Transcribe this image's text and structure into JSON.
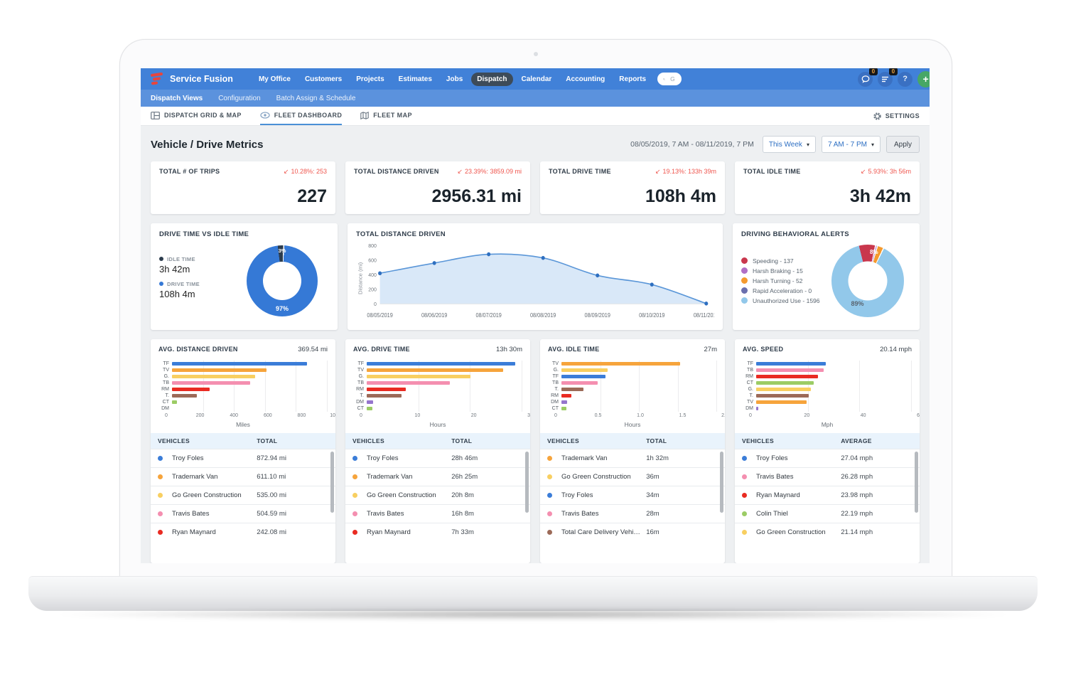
{
  "icons": {
    "decrease": "↙",
    "caret": "▾",
    "help": "?",
    "plus": "+"
  },
  "nav": {
    "brand": "Service Fusion",
    "items": [
      "My Office",
      "Customers",
      "Projects",
      "Estimates",
      "Jobs",
      "Dispatch",
      "Calendar",
      "Accounting",
      "Reports"
    ],
    "active_item": "Dispatch",
    "search_placeholder": "Global Search",
    "badges": {
      "messages": "0",
      "tasks": "0"
    }
  },
  "subnav": {
    "items": [
      "Dispatch Views",
      "Configuration",
      "Batch Assign & Schedule"
    ],
    "active": "Dispatch Views"
  },
  "tabs": {
    "items": [
      "DISPATCH GRID & MAP",
      "FLEET DASHBOARD",
      "FLEET MAP"
    ],
    "active": "FLEET DASHBOARD",
    "settings_label": "SETTINGS"
  },
  "page": {
    "title": "Vehicle / Drive Metrics",
    "date_range": "08/05/2019, 7 AM - 08/11/2019, 7 PM",
    "range_select": "This Week",
    "time_select": "7 AM - 7 PM",
    "apply_label": "Apply"
  },
  "kpis": [
    {
      "label": "TOTAL # OF TRIPS",
      "delta": "10.28%: 253",
      "value": "227"
    },
    {
      "label": "TOTAL DISTANCE DRIVEN",
      "delta": "23.39%: 3859.09 mi",
      "value": "2956.31 mi"
    },
    {
      "label": "TOTAL DRIVE TIME",
      "delta": "19.13%: 133h 39m",
      "value": "108h 4m"
    },
    {
      "label": "TOTAL IDLE TIME",
      "delta": "5.93%: 3h 56m",
      "value": "3h 42m"
    }
  ],
  "chart_data": [
    {
      "type": "pie",
      "title": "DRIVE TIME VS IDLE TIME",
      "legend_position": "left",
      "slices": [
        {
          "label": "IDLE TIME",
          "value": "3h 42m",
          "pct": 3,
          "color": "#2c3c4d"
        },
        {
          "label": "DRIVE TIME",
          "value": "108h 4m",
          "pct": 97,
          "color": "#3579d6"
        }
      ],
      "center_labels": {
        "major": "97%",
        "minor": "3%"
      }
    },
    {
      "type": "area",
      "title": "TOTAL DISTANCE DRIVEN",
      "ylabel": "Distance (mi)",
      "ymax": 800,
      "yticks": [
        0,
        200,
        400,
        600,
        800
      ],
      "x": [
        "08/05/2019",
        "08/06/2019",
        "08/07/2019",
        "08/08/2019",
        "08/09/2019",
        "08/10/2019",
        "08/11/2019"
      ],
      "values": [
        420,
        560,
        680,
        630,
        390,
        265,
        5
      ]
    },
    {
      "type": "pie",
      "title": "DRIVING BEHAVIORAL ALERTS",
      "legend_position": "left",
      "slices": [
        {
          "label": "Speeding - 137",
          "value": 137,
          "color": "#c9374d"
        },
        {
          "label": "Harsh Braking - 15",
          "value": 15,
          "color": "#b06fc6"
        },
        {
          "label": "Harsh Turning - 52",
          "value": 52,
          "color": "#f49a2e"
        },
        {
          "label": "Rapid Acceleration - 0",
          "value": 0,
          "color": "#6a6fae"
        },
        {
          "label": "Unauthorized Use - 1596",
          "value": 1596,
          "color": "#92c8ea"
        }
      ],
      "center_labels": {
        "major": "89%",
        "minor": "8%"
      }
    },
    {
      "type": "bar",
      "title": "AVG. DISTANCE DRIVEN",
      "value": "369.54 mi",
      "xlabel": "Miles",
      "xmax": 1000,
      "xticks": [
        "0",
        "200",
        "400",
        "600",
        "800",
        "1000"
      ],
      "bars": [
        {
          "label": "TF",
          "color": "#3b7dd8",
          "value": 873
        },
        {
          "label": "TV",
          "color": "#f6a43c",
          "value": 611
        },
        {
          "label": "G.",
          "color": "#f8cf61",
          "value": 535
        },
        {
          "label": "TB",
          "color": "#f48fb0",
          "value": 505
        },
        {
          "label": "RM",
          "color": "#e92b22",
          "value": 242
        },
        {
          "label": "T.",
          "color": "#9c6a58",
          "value": 160
        },
        {
          "label": "CT",
          "color": "#9ccc65",
          "value": 30
        },
        {
          "label": "DM",
          "color": "#9575cd",
          "value": 0
        }
      ]
    },
    {
      "type": "bar",
      "title": "AVG. DRIVE TIME",
      "value": "13h 30m",
      "xlabel": "Hours",
      "xmax": 30,
      "xticks": [
        "0",
        "10",
        "20",
        "30"
      ],
      "bars": [
        {
          "label": "TF",
          "color": "#3b7dd8",
          "value": 28.8
        },
        {
          "label": "TV",
          "color": "#f6a43c",
          "value": 26.4
        },
        {
          "label": "G.",
          "color": "#f8cf61",
          "value": 20.1
        },
        {
          "label": "TB",
          "color": "#f48fb0",
          "value": 16.1
        },
        {
          "label": "RM",
          "color": "#e92b22",
          "value": 7.6
        },
        {
          "label": "T.",
          "color": "#9c6a58",
          "value": 6.8
        },
        {
          "label": "DM",
          "color": "#9575cd",
          "value": 1.2
        },
        {
          "label": "CT",
          "color": "#9ccc65",
          "value": 1.1
        }
      ]
    },
    {
      "type": "bar",
      "title": "AVG. IDLE TIME",
      "value": "27m",
      "xlabel": "Hours",
      "xmax": 2,
      "xticks": [
        "0",
        "0.5",
        "1.0",
        "1.5",
        "2.0"
      ],
      "bars": [
        {
          "label": "TV",
          "color": "#f6a43c",
          "value": 1.53
        },
        {
          "label": "G.",
          "color": "#f8cf61",
          "value": 0.6
        },
        {
          "label": "TF",
          "color": "#3b7dd8",
          "value": 0.57
        },
        {
          "label": "TB",
          "color": "#f48fb0",
          "value": 0.47
        },
        {
          "label": "T.",
          "color": "#9c6a58",
          "value": 0.28
        },
        {
          "label": "RM",
          "color": "#e92b22",
          "value": 0.13
        },
        {
          "label": "DM",
          "color": "#9575cd",
          "value": 0.07
        },
        {
          "label": "CT",
          "color": "#9ccc65",
          "value": 0.06
        }
      ]
    },
    {
      "type": "bar",
      "title": "AVG. SPEED",
      "value": "20.14 mph",
      "xlabel": "Mph",
      "xmax": 60,
      "xticks": [
        "0",
        "20",
        "40",
        "60"
      ],
      "bars": [
        {
          "label": "TF",
          "color": "#3b7dd8",
          "value": 27.0
        },
        {
          "label": "TB",
          "color": "#f48fb0",
          "value": 26.3
        },
        {
          "label": "RM",
          "color": "#e92b22",
          "value": 24.0
        },
        {
          "label": "CT",
          "color": "#9ccc65",
          "value": 22.2
        },
        {
          "label": "G.",
          "color": "#f8cf61",
          "value": 21.1
        },
        {
          "label": "T.",
          "color": "#9c6a58",
          "value": 20.3
        },
        {
          "label": "TV",
          "color": "#f6a43c",
          "value": 19.5
        },
        {
          "label": "DM",
          "color": "#9575cd",
          "value": 0.7
        }
      ]
    }
  ],
  "vehicle_tables": [
    {
      "headers": [
        "VEHICLES",
        "TOTAL"
      ],
      "rows": [
        {
          "color": "#3b7dd8",
          "name": "Troy Foles",
          "value": "872.94 mi"
        },
        {
          "color": "#f6a43c",
          "name": "Trademark Van",
          "value": "611.10 mi"
        },
        {
          "color": "#f8cf61",
          "name": "Go Green Construction",
          "value": "535.00 mi"
        },
        {
          "color": "#f48fb0",
          "name": "Travis Bates",
          "value": "504.59 mi"
        },
        {
          "color": "#e92b22",
          "name": "Ryan Maynard",
          "value": "242.08 mi"
        }
      ]
    },
    {
      "headers": [
        "VEHICLES",
        "TOTAL"
      ],
      "rows": [
        {
          "color": "#3b7dd8",
          "name": "Troy Foles",
          "value": "28h 46m"
        },
        {
          "color": "#f6a43c",
          "name": "Trademark Van",
          "value": "26h 25m"
        },
        {
          "color": "#f8cf61",
          "name": "Go Green Construction",
          "value": "20h 8m"
        },
        {
          "color": "#f48fb0",
          "name": "Travis Bates",
          "value": "16h 8m"
        },
        {
          "color": "#e92b22",
          "name": "Ryan Maynard",
          "value": "7h 33m"
        }
      ]
    },
    {
      "headers": [
        "VEHICLES",
        "TOTAL"
      ],
      "rows": [
        {
          "color": "#f6a43c",
          "name": "Trademark Van",
          "value": "1h 32m"
        },
        {
          "color": "#f8cf61",
          "name": "Go Green Construction",
          "value": "36m"
        },
        {
          "color": "#3b7dd8",
          "name": "Troy Foles",
          "value": "34m"
        },
        {
          "color": "#f48fb0",
          "name": "Travis Bates",
          "value": "28m"
        },
        {
          "color": "#9c6a58",
          "name": "Total Care Delivery Vehi…",
          "value": "16m"
        }
      ]
    },
    {
      "headers": [
        "VEHICLES",
        "AVERAGE"
      ],
      "rows": [
        {
          "color": "#3b7dd8",
          "name": "Troy Foles",
          "value": "27.04 mph"
        },
        {
          "color": "#f48fb0",
          "name": "Travis Bates",
          "value": "26.28 mph"
        },
        {
          "color": "#e92b22",
          "name": "Ryan Maynard",
          "value": "23.98 mph"
        },
        {
          "color": "#9ccc65",
          "name": "Colin Thiel",
          "value": "22.19 mph"
        },
        {
          "color": "#f8cf61",
          "name": "Go Green Construction",
          "value": "21.14 mph"
        }
      ]
    }
  ]
}
